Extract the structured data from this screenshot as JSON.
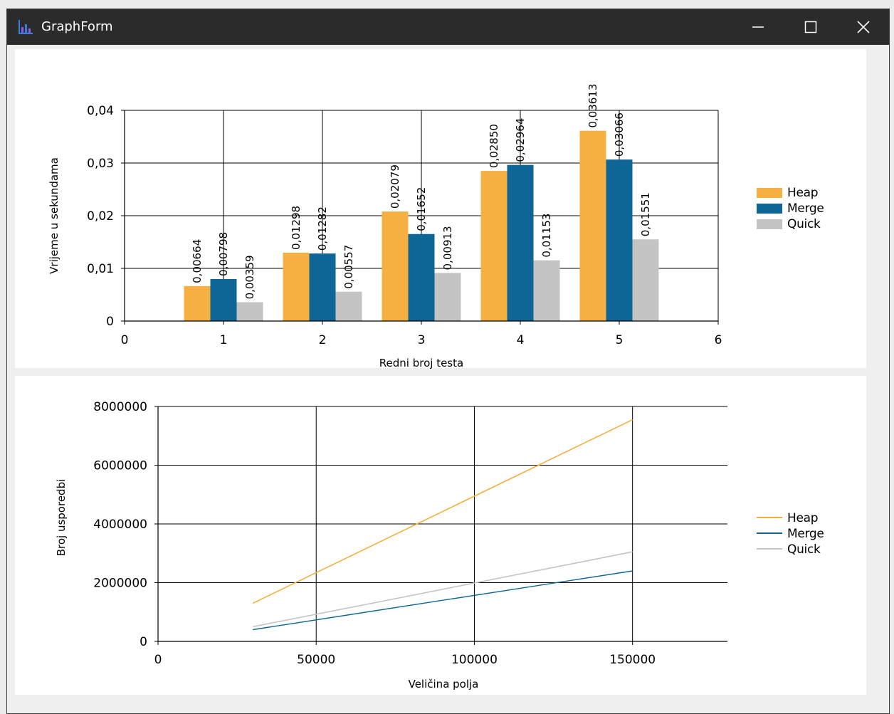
{
  "window": {
    "title": "GraphForm",
    "icons": {
      "app": "chart-app-icon",
      "minimize": "minimize-icon",
      "maximize": "maximize-icon",
      "close": "close-icon"
    }
  },
  "colors": {
    "heap": "#F5B041",
    "merge": "#0E6697",
    "quick": "#C4C4C4",
    "titlebar": "#2b2b2b"
  },
  "chart_data": [
    {
      "type": "bar",
      "title": "",
      "xlabel": "Redni broj testa",
      "ylabel": "Vrijeme u sekundama",
      "xlim": [
        0,
        6
      ],
      "ylim": [
        0,
        0.04
      ],
      "xticks": [
        "0",
        "1",
        "2",
        "3",
        "4",
        "5",
        "6"
      ],
      "yticks": [
        "0",
        "0,01",
        "0,02",
        "0,03",
        "0,04"
      ],
      "grid": true,
      "legend": "right",
      "categories": [
        1,
        2,
        3,
        4,
        5
      ],
      "series": [
        {
          "name": "Heap",
          "values": [
            0.00664,
            0.01298,
            0.02079,
            0.0285,
            0.03613
          ],
          "labels": [
            "0,00664",
            "0,01298",
            "0,02079",
            "0,02850",
            "0,03613"
          ]
        },
        {
          "name": "Merge",
          "values": [
            0.00798,
            0.01282,
            0.01652,
            0.02964,
            0.03066
          ],
          "labels": [
            "0,00798",
            "0,01282",
            "0,01652",
            "0,02964",
            "0,03066"
          ]
        },
        {
          "name": "Quick",
          "values": [
            0.00359,
            0.00557,
            0.00913,
            0.01153,
            0.01551
          ],
          "labels": [
            "0,00359",
            "0,00557",
            "0,00913",
            "0,01153",
            "0,01551"
          ]
        }
      ]
    },
    {
      "type": "line",
      "title": "",
      "xlabel": "Veličina polja",
      "ylabel": "Broj usporedbi",
      "xlim": [
        0,
        180000
      ],
      "ylim": [
        0,
        8000000
      ],
      "xticks": [
        "0",
        "50000",
        "100000",
        "150000"
      ],
      "yticks": [
        "0",
        "2000000",
        "4000000",
        "6000000",
        "8000000"
      ],
      "grid": true,
      "legend": "right",
      "series": [
        {
          "name": "Heap",
          "x": [
            30000,
            150000
          ],
          "y": [
            1300000,
            7550000
          ]
        },
        {
          "name": "Merge",
          "x": [
            30000,
            150000
          ],
          "y": [
            400000,
            2400000
          ]
        },
        {
          "name": "Quick",
          "x": [
            30000,
            150000
          ],
          "y": [
            500000,
            3050000
          ]
        }
      ]
    }
  ]
}
